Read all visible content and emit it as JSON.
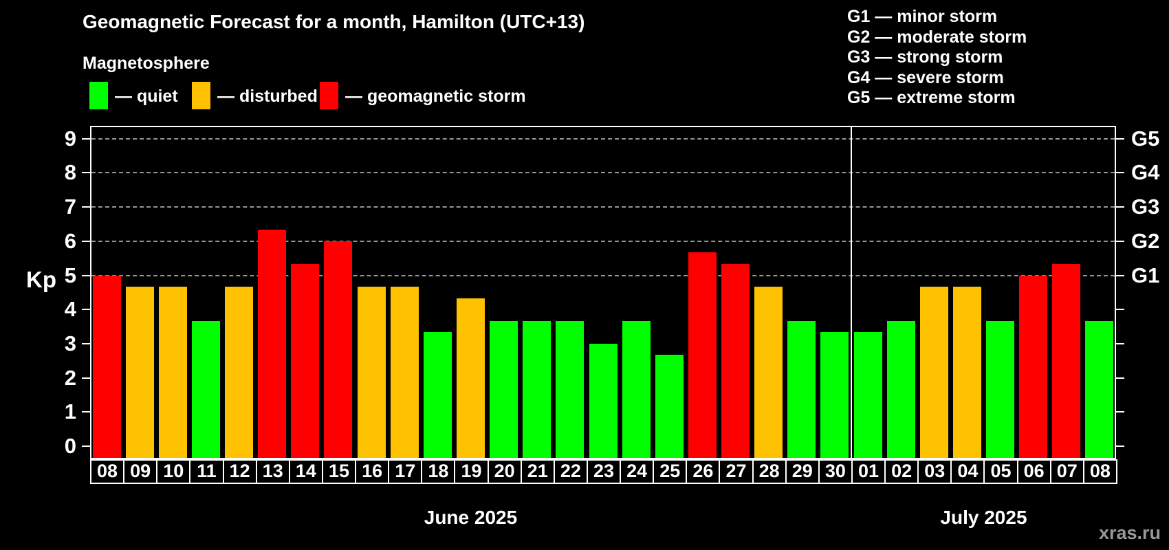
{
  "title": "Geomagnetic Forecast for a month, Hamilton (UTC+13)",
  "subtitle": "Magnetosphere",
  "legend": [
    {
      "key": "quiet",
      "label": "— quiet"
    },
    {
      "key": "disturbed",
      "label": "— disturbed"
    },
    {
      "key": "storm",
      "label": "— geomagnetic storm"
    }
  ],
  "g_legend": [
    "G1 — minor storm",
    "G2 — moderate storm",
    "G3 — strong storm",
    "G4 — severe storm",
    "G5 — extreme storm"
  ],
  "watermark": "xras.ru",
  "colors": {
    "quiet": "#00ff00",
    "disturbed": "#ffc200",
    "storm": "#ff0000",
    "grid": "#b0b0b0",
    "frame": "#ffffff",
    "watermark": "#999999"
  },
  "axis": {
    "ylabel": "Kp",
    "yticks": [
      0,
      1,
      2,
      3,
      4,
      5,
      6,
      7,
      8,
      9
    ],
    "grid_kp": [
      5,
      6,
      7,
      8,
      9
    ],
    "g_labels": [
      {
        "kp": 5,
        "label": "G1"
      },
      {
        "kp": 6,
        "label": "G2"
      },
      {
        "kp": 7,
        "label": "G3"
      },
      {
        "kp": 8,
        "label": "G4"
      },
      {
        "kp": 9,
        "label": "G5"
      }
    ]
  },
  "chart_data": {
    "type": "bar",
    "ylabel": "Kp",
    "ylim": [
      -0.38,
      9.38
    ],
    "grid": "dashed horizontal at Kp 5-9 (G1-G5)",
    "months": [
      {
        "label": "June 2025",
        "days": 23
      },
      {
        "label": "July 2025",
        "days": 8
      }
    ],
    "series": [
      {
        "day": "08",
        "kp": 5.0,
        "status": "storm"
      },
      {
        "day": "09",
        "kp": 4.67,
        "status": "disturbed"
      },
      {
        "day": "10",
        "kp": 4.67,
        "status": "disturbed"
      },
      {
        "day": "11",
        "kp": 3.67,
        "status": "quiet"
      },
      {
        "day": "12",
        "kp": 4.67,
        "status": "disturbed"
      },
      {
        "day": "13",
        "kp": 6.33,
        "status": "storm"
      },
      {
        "day": "14",
        "kp": 5.33,
        "status": "storm"
      },
      {
        "day": "15",
        "kp": 6.0,
        "status": "storm"
      },
      {
        "day": "16",
        "kp": 4.67,
        "status": "disturbed"
      },
      {
        "day": "17",
        "kp": 4.67,
        "status": "disturbed"
      },
      {
        "day": "18",
        "kp": 3.33,
        "status": "quiet"
      },
      {
        "day": "19",
        "kp": 4.33,
        "status": "disturbed"
      },
      {
        "day": "20",
        "kp": 3.67,
        "status": "quiet"
      },
      {
        "day": "21",
        "kp": 3.67,
        "status": "quiet"
      },
      {
        "day": "22",
        "kp": 3.67,
        "status": "quiet"
      },
      {
        "day": "23",
        "kp": 3.0,
        "status": "quiet"
      },
      {
        "day": "24",
        "kp": 3.67,
        "status": "quiet"
      },
      {
        "day": "25",
        "kp": 2.67,
        "status": "quiet"
      },
      {
        "day": "26",
        "kp": 5.67,
        "status": "storm"
      },
      {
        "day": "27",
        "kp": 5.33,
        "status": "storm"
      },
      {
        "day": "28",
        "kp": 4.67,
        "status": "disturbed"
      },
      {
        "day": "29",
        "kp": 3.67,
        "status": "quiet"
      },
      {
        "day": "30",
        "kp": 3.33,
        "status": "quiet"
      },
      {
        "day": "01",
        "kp": 3.33,
        "status": "quiet"
      },
      {
        "day": "02",
        "kp": 3.67,
        "status": "quiet"
      },
      {
        "day": "03",
        "kp": 4.67,
        "status": "disturbed"
      },
      {
        "day": "04",
        "kp": 4.67,
        "status": "disturbed"
      },
      {
        "day": "05",
        "kp": 3.67,
        "status": "quiet"
      },
      {
        "day": "06",
        "kp": 5.0,
        "status": "storm"
      },
      {
        "day": "07",
        "kp": 5.33,
        "status": "storm"
      },
      {
        "day": "08",
        "kp": 3.67,
        "status": "quiet"
      }
    ]
  }
}
